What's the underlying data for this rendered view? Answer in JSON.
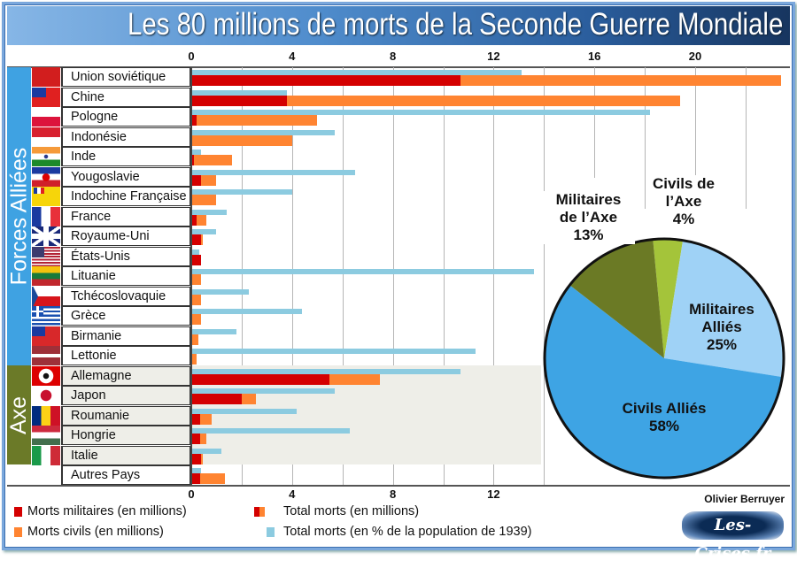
{
  "title": "Les 80 millions de morts de la Seconde Guerre Mondiale",
  "author": "Olivier Berruyer",
  "logo_text": "Les-Crises.fr",
  "groups": {
    "allies": "Forces Alliées",
    "axis": "Axe"
  },
  "colors": {
    "military": "#d40000",
    "civilian": "#ff8431",
    "percent": "#8ccbe0",
    "allies_group": "#3fa2e2",
    "axis_group": "#6b7a28"
  },
  "legend": {
    "military": "Morts militaires (en millions)",
    "civilian": "Morts civils (en millions)",
    "total": "Total morts (en millions)",
    "percent": "Total morts (en % de la population de 1939)"
  },
  "chart_data": [
    {
      "type": "bar",
      "orientation": "horizontal",
      "stacked": true,
      "categories": [
        "Union soviétique",
        "Chine",
        "Pologne",
        "Indonésie",
        "Inde",
        "Yougoslavie",
        "Indochine Française",
        "France",
        "Royaume-Uni",
        "États-Unis",
        "Lituanie",
        "Tchécoslovaquie",
        "Grèce",
        "Birmanie",
        "Lettonie",
        "Allemagne",
        "Japon",
        "Roumanie",
        "Hongrie",
        "Italie",
        "Autres Pays"
      ],
      "category_group": [
        "allies",
        "allies",
        "allies",
        "allies",
        "allies",
        "allies",
        "allies",
        "allies",
        "allies",
        "allies",
        "allies",
        "allies",
        "allies",
        "allies",
        "allies",
        "axis",
        "axis",
        "axis",
        "axis",
        "axis",
        "none"
      ],
      "flag_icons": [
        "ussr",
        "roc",
        "poland",
        "indonesia",
        "india",
        "yugo",
        "indochina",
        "france",
        "uk",
        "usa",
        "lithuania",
        "czech",
        "greece",
        "burma",
        "latvia",
        "germany",
        "japan",
        "romania",
        "hungary",
        "italy",
        "none"
      ],
      "series": [
        {
          "name": "Morts militaires (en millions)",
          "values": [
            10.7,
            3.8,
            0.2,
            0,
            0.1,
            0.4,
            0,
            0.2,
            0.38,
            0.4,
            0,
            0,
            0,
            0,
            0,
            5.5,
            2.0,
            0.35,
            0.35,
            0.4,
            0.35
          ]
        },
        {
          "name": "Morts civils (en millions)",
          "values": [
            12.7,
            15.6,
            4.8,
            4.0,
            1.5,
            0.6,
            1.0,
            0.4,
            0.07,
            0,
            0.38,
            0.38,
            0.38,
            0.27,
            0.2,
            2.0,
            0.55,
            0.45,
            0.25,
            0.07,
            1.0
          ]
        },
        {
          "name": "Total morts (en % de la population de 1939)",
          "values": [
            13.1,
            3.8,
            18.2,
            5.7,
            0.4,
            6.5,
            4.0,
            1.4,
            1.0,
            0.3,
            13.6,
            2.3,
            4.4,
            1.8,
            11.3,
            10.7,
            5.7,
            4.2,
            6.3,
            1.2,
            0.4
          ]
        }
      ],
      "top_axis_ticks": [
        "0",
        "4",
        "8",
        "12",
        "16",
        "20"
      ],
      "bottom_axis_ticks": [
        "0",
        "4",
        "8",
        "12"
      ],
      "xlim": [
        0,
        23.5
      ],
      "grid": true,
      "legend_position": "bottom-left"
    },
    {
      "type": "pie",
      "start": "top",
      "slices": [
        {
          "label": "Civils de l’Axe",
          "label_lines": [
            "Civils de",
            "l’Axe"
          ],
          "value": 4,
          "value_label": "4%",
          "color": "#a4c43a"
        },
        {
          "label": "Militaires Alliés",
          "label_lines": [
            "Militaires",
            "Alliés"
          ],
          "value": 25,
          "value_label": "25%",
          "color": "#9fd2f6"
        },
        {
          "label": "Civils Alliés",
          "label_lines": [
            "Civils Alliés"
          ],
          "value": 58,
          "value_label": "58%",
          "color": "#3ea4e4"
        },
        {
          "label": "Militaires de l’Axe",
          "label_lines": [
            "Militaires",
            "de l’Axe"
          ],
          "value": 13,
          "value_label": "13%",
          "color": "#6b7a25"
        }
      ]
    }
  ]
}
